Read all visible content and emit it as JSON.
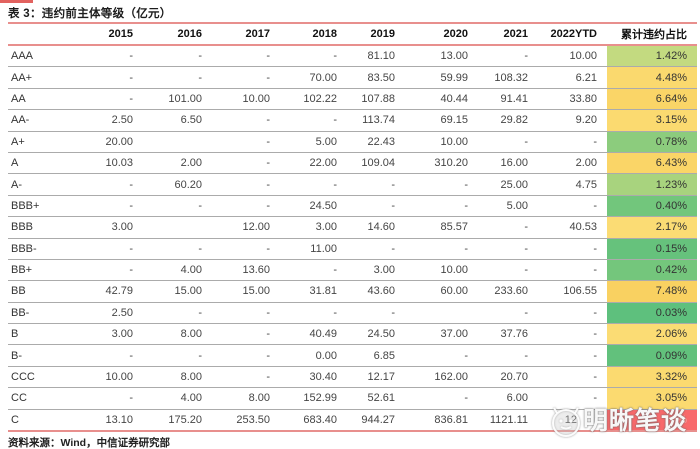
{
  "title": "表 3：违约前主体等级（亿元）",
  "source": "资料来源：Wind，中信证券研究部",
  "watermark": {
    "text": "明晰笔谈",
    "logo_icon": "mascot-face-icon"
  },
  "colors": {
    "accent_line": "#e88f8d",
    "top_bar": "#e2625f",
    "row_divider": "#ababab",
    "scale_min_green": "#5ec07d",
    "scale_mid_yellow": "#fbdc74",
    "scale_max_red": "#f8696b"
  },
  "chart_data": {
    "type": "table",
    "title": "表 3：违约前主体等级（亿元）",
    "columns": [
      "",
      "2015",
      "2016",
      "2017",
      "2018",
      "2019",
      "2020",
      "2021",
      "2022YTD",
      "累计违约占比"
    ],
    "rows": [
      {
        "label": "AAA",
        "values": [
          "-",
          "-",
          "-",
          "-",
          "81.10",
          "13.00",
          "-",
          "10.00"
        ],
        "pct": "1.42%",
        "pct_color": "#c3da80"
      },
      {
        "label": "AA+",
        "values": [
          "-",
          "-",
          "-",
          "70.00",
          "83.50",
          "59.99",
          "108.32",
          "6.21"
        ],
        "pct": "4.48%",
        "pct_color": "#fad96e"
      },
      {
        "label": "AA",
        "values": [
          "-",
          "101.00",
          "10.00",
          "102.22",
          "107.88",
          "40.44",
          "91.41",
          "33.80"
        ],
        "pct": "6.64%",
        "pct_color": "#fad567"
      },
      {
        "label": "AA-",
        "values": [
          "2.50",
          "6.50",
          "-",
          "-",
          "113.74",
          "69.15",
          "29.82",
          "9.20"
        ],
        "pct": "3.15%",
        "pct_color": "#fbda70"
      },
      {
        "label": "A+",
        "values": [
          "20.00",
          "",
          "-",
          "5.00",
          "22.43",
          "10.00",
          "-",
          "-"
        ],
        "pct": "0.78%",
        "pct_color": "#8ccc7d"
      },
      {
        "label": "A",
        "values": [
          "10.03",
          "2.00",
          "-",
          "22.00",
          "109.04",
          "310.20",
          "16.00",
          "2.00"
        ],
        "pct": "6.43%",
        "pct_color": "#fad567"
      },
      {
        "label": "A-",
        "values": [
          "-",
          "60.20",
          "-",
          "-",
          "-",
          "-",
          "25.00",
          "4.75"
        ],
        "pct": "1.23%",
        "pct_color": "#a8d37e"
      },
      {
        "label": "BBB+",
        "values": [
          "-",
          "-",
          "-",
          "24.50",
          "-",
          "-",
          "5.00",
          "-"
        ],
        "pct": "0.40%",
        "pct_color": "#72c67c"
      },
      {
        "label": "BBB",
        "values": [
          "3.00",
          "",
          "12.00",
          "3.00",
          "14.60",
          "85.57",
          "-",
          "40.53"
        ],
        "pct": "2.17%",
        "pct_color": "#fbdc74"
      },
      {
        "label": "BBB-",
        "values": [
          "-",
          "-",
          "-",
          "11.00",
          "-",
          "-",
          "-",
          "-"
        ],
        "pct": "0.15%",
        "pct_color": "#66c27c"
      },
      {
        "label": "BB+",
        "values": [
          "-",
          "4.00",
          "13.60",
          "-",
          "3.00",
          "10.00",
          "-",
          "-"
        ],
        "pct": "0.42%",
        "pct_color": "#74c67c"
      },
      {
        "label": "BB",
        "values": [
          "42.79",
          "15.00",
          "15.00",
          "31.81",
          "43.60",
          "60.00",
          "233.60",
          "106.55"
        ],
        "pct": "7.48%",
        "pct_color": "#f9d161"
      },
      {
        "label": "BB-",
        "values": [
          "2.50",
          "-",
          "-",
          "-",
          "-",
          "",
          "-",
          "-"
        ],
        "pct": "0.03%",
        "pct_color": "#5ec07d"
      },
      {
        "label": "B",
        "values": [
          "3.00",
          "8.00",
          "-",
          "40.49",
          "24.50",
          "37.00",
          "37.76",
          "-"
        ],
        "pct": "2.06%",
        "pct_color": "#fbdc74"
      },
      {
        "label": "B-",
        "values": [
          "-",
          "-",
          "-",
          "0.00",
          "6.85",
          "-",
          "-",
          "-"
        ],
        "pct": "0.09%",
        "pct_color": "#62c17c"
      },
      {
        "label": "CCC",
        "values": [
          "10.00",
          "8.00",
          "-",
          "30.40",
          "12.17",
          "162.00",
          "20.70",
          "-"
        ],
        "pct": "3.32%",
        "pct_color": "#fbda70"
      },
      {
        "label": "CC",
        "values": [
          "-",
          "4.00",
          "8.00",
          "152.99",
          "52.61",
          "-",
          "6.00",
          "-"
        ],
        "pct": "3.05%",
        "pct_color": "#fbda70"
      },
      {
        "label": "C",
        "values": [
          "13.10",
          "175.20",
          "253.50",
          "683.40",
          "944.27",
          "836.81",
          "1121.11",
          "12"
        ],
        "pct": "%",
        "pct_color": "#f8696b",
        "obscured": true
      }
    ]
  }
}
